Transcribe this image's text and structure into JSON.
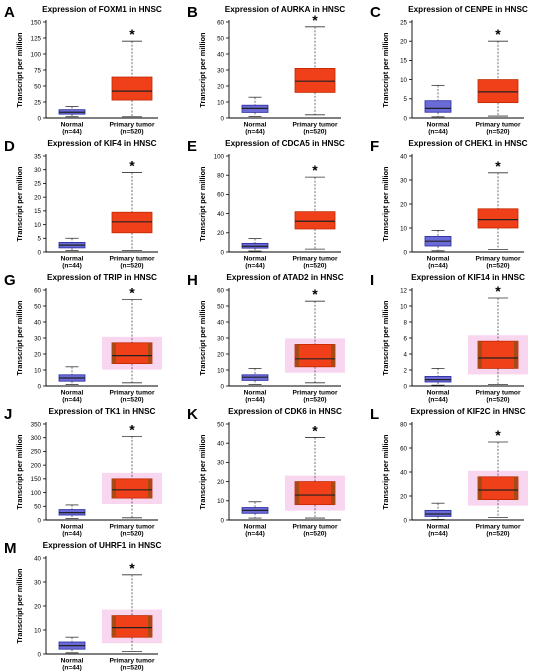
{
  "figure": {
    "ylabel": "Transcript per million",
    "categories": [
      "Normal",
      "Primary tumor"
    ],
    "counts": [
      "(n=44)",
      "(n=520)"
    ],
    "significance": "*",
    "colors": {
      "normal_fill": "#6b6bd8",
      "normal_edge": "#2a2aa0",
      "tumor_fill": "#f0401a",
      "tumor_edge": "#c02800",
      "highlight": "#f9d6ef",
      "tumor_alt_fill": "#a84a14",
      "median": "#222222",
      "axis": "#000000"
    }
  },
  "chart_data": [
    {
      "type": "box",
      "panel": "A",
      "title": "Expression of FOXM1 in HNSC",
      "ylim": [
        0,
        150
      ],
      "yticks": [
        0,
        25,
        50,
        75,
        100,
        125,
        150
      ],
      "highlight": false,
      "boxes": [
        {
          "category": "Normal",
          "n": 44,
          "min": 2,
          "q1": 6,
          "median": 9,
          "q3": 13,
          "max": 18
        },
        {
          "category": "Primary tumor",
          "n": 520,
          "min": 2,
          "q1": 28,
          "median": 42,
          "q3": 64,
          "max": 120
        }
      ]
    },
    {
      "type": "box",
      "panel": "B",
      "title": "Expression of AURKA in HNSC",
      "ylim": [
        0,
        60
      ],
      "yticks": [
        0,
        10,
        20,
        30,
        40,
        50,
        60
      ],
      "highlight": false,
      "boxes": [
        {
          "category": "Normal",
          "n": 44,
          "min": 1,
          "q1": 3.5,
          "median": 6,
          "q3": 8,
          "max": 13
        },
        {
          "category": "Primary tumor",
          "n": 520,
          "min": 2,
          "q1": 16,
          "median": 23,
          "q3": 31,
          "max": 57
        }
      ]
    },
    {
      "type": "box",
      "panel": "C",
      "title": "Expression of CENPE in HNSC",
      "ylim": [
        0,
        25
      ],
      "yticks": [
        0,
        5,
        10,
        15,
        20,
        25
      ],
      "highlight": false,
      "boxes": [
        {
          "category": "Normal",
          "n": 44,
          "min": 0.3,
          "q1": 1.5,
          "median": 2.5,
          "q3": 4.5,
          "max": 8.5
        },
        {
          "category": "Primary tumor",
          "n": 520,
          "min": 0.5,
          "q1": 4,
          "median": 6.8,
          "q3": 10,
          "max": 20
        }
      ]
    },
    {
      "type": "box",
      "panel": "D",
      "title": "Expression of KIF4 in HNSC",
      "ylim": [
        0,
        35
      ],
      "yticks": [
        0,
        5,
        10,
        15,
        20,
        25,
        30,
        35
      ],
      "highlight": false,
      "boxes": [
        {
          "category": "Normal",
          "n": 44,
          "min": 0.5,
          "q1": 1.5,
          "median": 2.5,
          "q3": 3.5,
          "max": 5
        },
        {
          "category": "Primary tumor",
          "n": 520,
          "min": 0.5,
          "q1": 7,
          "median": 11,
          "q3": 14.5,
          "max": 29
        }
      ]
    },
    {
      "type": "box",
      "panel": "E",
      "title": "Expression of CDCA5 in HNSC",
      "ylim": [
        0,
        100
      ],
      "yticks": [
        0,
        20,
        40,
        60,
        80,
        100
      ],
      "highlight": false,
      "boxes": [
        {
          "category": "Normal",
          "n": 44,
          "min": 1,
          "q1": 4,
          "median": 6,
          "q3": 9,
          "max": 14
        },
        {
          "category": "Primary tumor",
          "n": 520,
          "min": 3,
          "q1": 24,
          "median": 32,
          "q3": 42,
          "max": 78
        }
      ]
    },
    {
      "type": "box",
      "panel": "F",
      "title": "Expression of CHEK1 in HNSC",
      "ylim": [
        0,
        40
      ],
      "yticks": [
        0,
        10,
        20,
        30,
        40
      ],
      "highlight": false,
      "boxes": [
        {
          "category": "Normal",
          "n": 44,
          "min": 0.5,
          "q1": 2.5,
          "median": 4.5,
          "q3": 6.5,
          "max": 9
        },
        {
          "category": "Primary tumor",
          "n": 520,
          "min": 1,
          "q1": 10,
          "median": 13.5,
          "q3": 18,
          "max": 33
        }
      ]
    },
    {
      "type": "box",
      "panel": "G",
      "title": "Expression of TRIP in HNSC",
      "ylim": [
        0,
        60
      ],
      "yticks": [
        0,
        10,
        20,
        30,
        40,
        50,
        60
      ],
      "highlight": true,
      "boxes": [
        {
          "category": "Normal",
          "n": 44,
          "min": 1,
          "q1": 3,
          "median": 5,
          "q3": 7,
          "max": 12
        },
        {
          "category": "Primary tumor",
          "n": 520,
          "min": 2,
          "q1": 14,
          "median": 19,
          "q3": 27,
          "max": 54
        }
      ]
    },
    {
      "type": "box",
      "panel": "H",
      "title": "Expression of ATAD2 in HNSC",
      "ylim": [
        0,
        60
      ],
      "yticks": [
        0,
        10,
        20,
        30,
        40,
        50,
        60
      ],
      "highlight": true,
      "boxes": [
        {
          "category": "Normal",
          "n": 44,
          "min": 1,
          "q1": 3.5,
          "median": 5.5,
          "q3": 7,
          "max": 11
        },
        {
          "category": "Primary tumor",
          "n": 520,
          "min": 2,
          "q1": 12,
          "median": 17,
          "q3": 26,
          "max": 53
        }
      ]
    },
    {
      "type": "box",
      "panel": "I",
      "title": "Expression of KIF14 in HNSC",
      "ylim": [
        0,
        12
      ],
      "yticks": [
        0,
        2,
        4,
        6,
        8,
        10,
        12
      ],
      "highlight": true,
      "boxes": [
        {
          "category": "Normal",
          "n": 44,
          "min": 0.1,
          "q1": 0.5,
          "median": 0.8,
          "q3": 1.2,
          "max": 2.2
        },
        {
          "category": "Primary tumor",
          "n": 520,
          "min": 0.2,
          "q1": 2.2,
          "median": 3.5,
          "q3": 5.6,
          "max": 11
        }
      ]
    },
    {
      "type": "box",
      "panel": "J",
      "title": "Expression of TK1 in HNSC",
      "ylim": [
        0,
        350
      ],
      "yticks": [
        0,
        50,
        100,
        150,
        200,
        250,
        300,
        350
      ],
      "highlight": true,
      "boxes": [
        {
          "category": "Normal",
          "n": 44,
          "min": 5,
          "q1": 18,
          "median": 27,
          "q3": 38,
          "max": 55
        },
        {
          "category": "Primary tumor",
          "n": 520,
          "min": 8,
          "q1": 80,
          "median": 110,
          "q3": 150,
          "max": 305
        }
      ]
    },
    {
      "type": "box",
      "panel": "K",
      "title": "Expression of CDK6 in HNSC",
      "ylim": [
        0,
        50
      ],
      "yticks": [
        0,
        10,
        20,
        30,
        40,
        50
      ],
      "highlight": true,
      "boxes": [
        {
          "category": "Normal",
          "n": 44,
          "min": 1,
          "q1": 3.5,
          "median": 5,
          "q3": 6.5,
          "max": 9.5
        },
        {
          "category": "Primary tumor",
          "n": 520,
          "min": 1,
          "q1": 8,
          "median": 13,
          "q3": 20,
          "max": 43
        }
      ]
    },
    {
      "type": "box",
      "panel": "L",
      "title": "Expression of KIF2C in HNSC",
      "ylim": [
        0,
        80
      ],
      "yticks": [
        0,
        20,
        40,
        60,
        80
      ],
      "highlight": true,
      "boxes": [
        {
          "category": "Normal",
          "n": 44,
          "min": 0.5,
          "q1": 3,
          "median": 5,
          "q3": 8,
          "max": 14
        },
        {
          "category": "Primary tumor",
          "n": 520,
          "min": 2,
          "q1": 17,
          "median": 25,
          "q3": 36,
          "max": 65
        }
      ]
    },
    {
      "type": "box",
      "panel": "M",
      "title": "Expression of UHRF1 in HNSC",
      "ylim": [
        0,
        40
      ],
      "yticks": [
        0,
        10,
        20,
        30,
        40
      ],
      "highlight": true,
      "boxes": [
        {
          "category": "Normal",
          "n": 44,
          "min": 0.5,
          "q1": 2,
          "median": 3.5,
          "q3": 5,
          "max": 7
        },
        {
          "category": "Primary tumor",
          "n": 520,
          "min": 1,
          "q1": 7,
          "median": 11,
          "q3": 16,
          "max": 33
        }
      ]
    }
  ]
}
